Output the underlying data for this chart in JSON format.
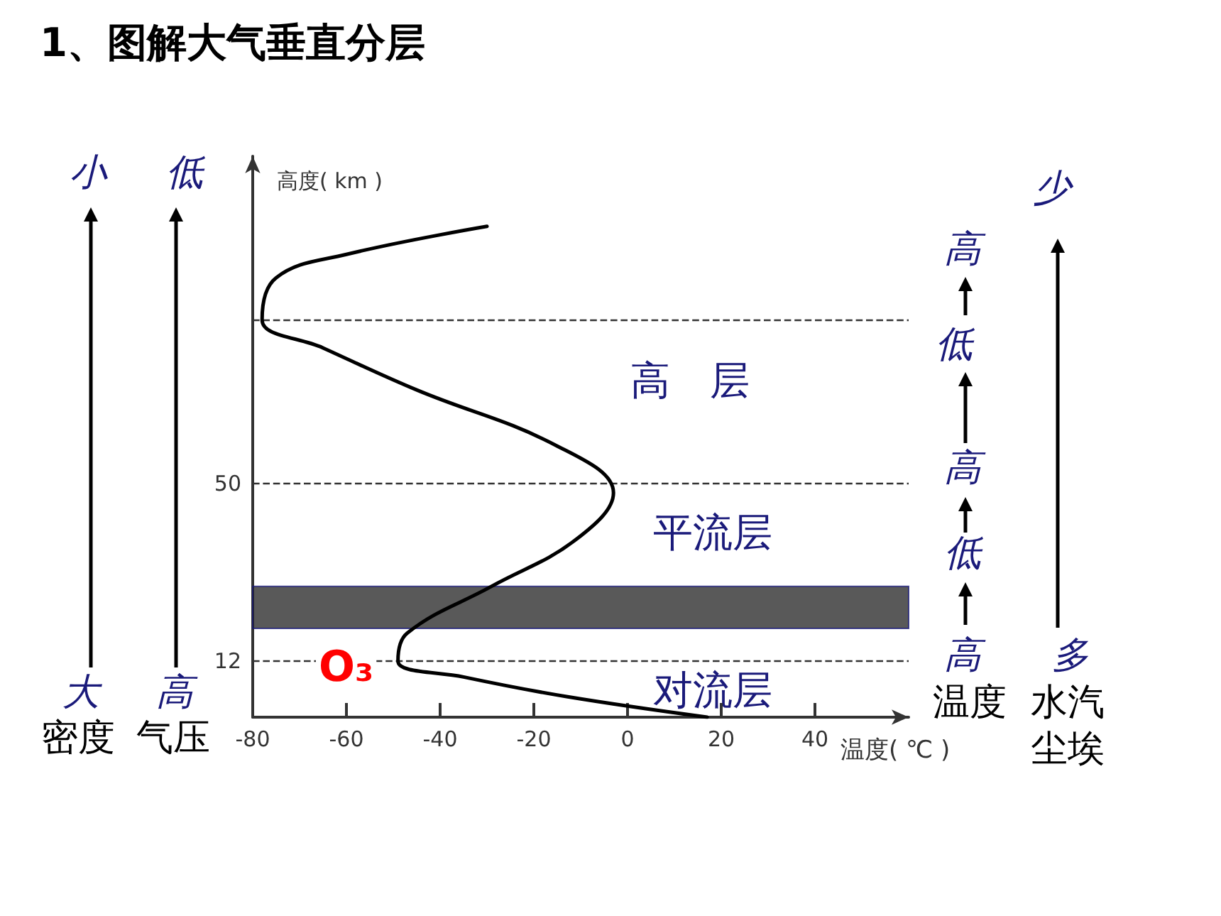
{
  "chart_data": {
    "type": "line",
    "title": "1、图解大气垂直分层",
    "xlabel": "温度( ℃ )",
    "ylabel": "高度( km )",
    "xlim": [
      -80,
      60
    ],
    "xticks": [
      -80,
      -60,
      -40,
      -20,
      0,
      20,
      40
    ],
    "ylim": [
      0,
      120
    ],
    "yticks": [
      12,
      50
    ],
    "series": [
      {
        "color": "#000000",
        "x": [
          17,
          -13,
          -35,
          -49,
          -47,
          -29,
          -11,
          -3,
          -15,
          -45,
          -65,
          -78,
          -75,
          -60,
          -30
        ],
        "values": [
          0,
          4.4,
          8.6,
          12,
          18,
          28,
          38,
          48,
          58,
          70,
          79,
          85,
          94,
          99,
          105
        ]
      }
    ],
    "ref_lines": [
      {
        "axis": "y",
        "value": 12,
        "line_style": "dashed",
        "color": "#333333"
      },
      {
        "axis": "y",
        "value": 50,
        "line_style": "dashed",
        "color": "#333333"
      },
      {
        "axis": "y",
        "value": 85,
        "line_style": "dashed",
        "color": "#333333"
      }
    ],
    "bands": [
      {
        "axis": "y",
        "from": 19,
        "to": 28,
        "label": "O₃",
        "color": "#222222"
      }
    ],
    "grid": false,
    "marker": "none",
    "line_style": "solid",
    "annotations": [
      "小",
      "大",
      "密度",
      "低",
      "高",
      "气压",
      "高",
      "低",
      "高",
      "低",
      "高",
      "温度",
      "少",
      "多",
      "水汽",
      "尘埃",
      "高　层",
      "平流层",
      "对流层"
    ]
  }
}
